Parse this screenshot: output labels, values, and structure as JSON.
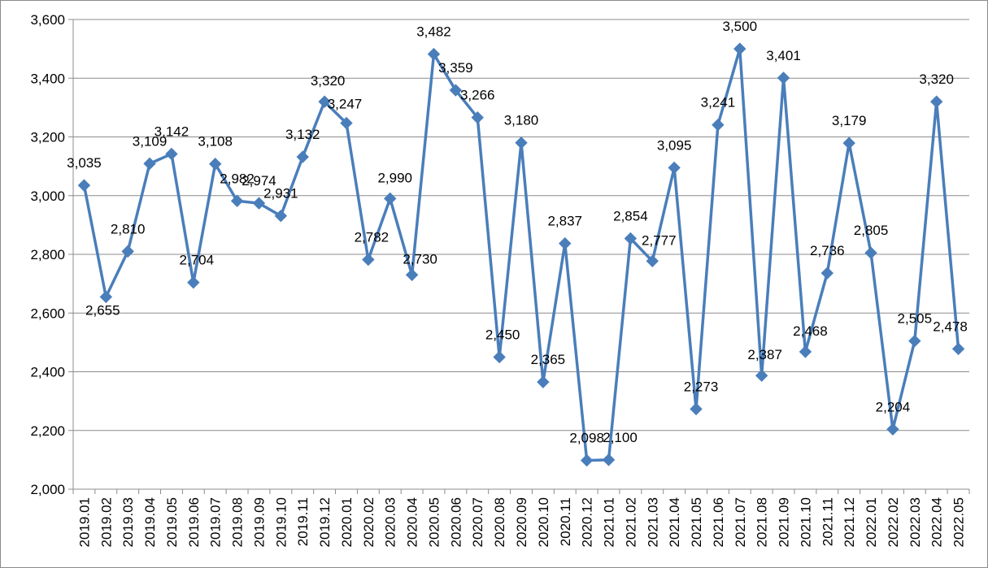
{
  "chart_data": {
    "type": "line",
    "title": "",
    "xlabel": "",
    "ylabel": "",
    "ylim": [
      2000,
      3600
    ],
    "yticks": [
      2000,
      2200,
      2400,
      2600,
      2800,
      3000,
      3200,
      3400,
      3600
    ],
    "ytick_labels": [
      "2,000",
      "2,200",
      "2,400",
      "2,600",
      "2,800",
      "3,000",
      "3,200",
      "3,400",
      "3,600"
    ],
    "grid": "horizontal",
    "legend": "none",
    "line_color": "#4A7EBB",
    "marker": "diamond",
    "categories": [
      "2019.01",
      "2019.02",
      "2019.03",
      "2019.04",
      "2019.05",
      "2019.06",
      "2019.07",
      "2019.08",
      "2019.09",
      "2019.10",
      "2019.11",
      "2019.12",
      "2020.01",
      "2020.02",
      "2020.03",
      "2020.04",
      "2020.05",
      "2020.06",
      "2020.07",
      "2020.08",
      "2020.09",
      "2020.10",
      "2020.11",
      "2020.12",
      "2021.01",
      "2021.02",
      "2021.03",
      "2021.04",
      "2021.05",
      "2021.06",
      "2021.07",
      "2021.08",
      "2021.09",
      "2021.10",
      "2021.11",
      "2021.12",
      "2022.01",
      "2022.02",
      "2022.03",
      "2022.04",
      "2022.05"
    ],
    "values": [
      3035,
      2655,
      2810,
      3109,
      3142,
      2704,
      3108,
      2982,
      2974,
      2931,
      3132,
      3320,
      3247,
      2782,
      2990,
      2730,
      3482,
      3359,
      3266,
      2450,
      3180,
      2365,
      2837,
      2098,
      2100,
      2854,
      2777,
      3095,
      2273,
      3241,
      3500,
      2387,
      3401,
      2468,
      2736,
      3179,
      2805,
      2204,
      2505,
      3320,
      2478
    ],
    "data_labels": [
      "3,035",
      "2,655",
      "2,810",
      "3,109",
      "3,142",
      "2,704",
      "3,108",
      "2,982",
      "2,974",
      "2,931",
      "3,132",
      "3,320",
      "3,247",
      "2,782",
      "2,990",
      "2,730",
      "3,482",
      "3,359",
      "3,266",
      "2,450",
      "3,180",
      "2,365",
      "2,837",
      "2,098",
      "2,100",
      "2,854",
      "2,777",
      "3,095",
      "2,273",
      "3,241",
      "3,500",
      "2,387",
      "3,401",
      "2,468",
      "2,736",
      "3,179",
      "2,805",
      "2,204",
      "2,505",
      "3,320",
      "2,478"
    ]
  }
}
